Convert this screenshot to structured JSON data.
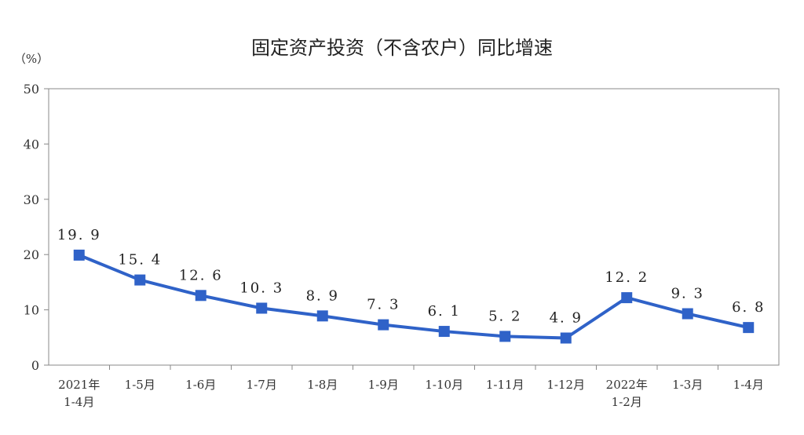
{
  "chart_data": {
    "type": "line",
    "title": "固定资产投资（不含农户）同比增速",
    "unit_label": "（%）",
    "xlabel": "",
    "ylabel": "",
    "ylim": [
      0,
      50
    ],
    "yticks": [
      0,
      10,
      20,
      30,
      40,
      50
    ],
    "grid": false,
    "categories": [
      [
        "2021年",
        "1-4月"
      ],
      [
        "1-5月"
      ],
      [
        "1-6月"
      ],
      [
        "1-7月"
      ],
      [
        "1-8月"
      ],
      [
        "1-9月"
      ],
      [
        "1-10月"
      ],
      [
        "1-11月"
      ],
      [
        "1-12月"
      ],
      [
        "2022年",
        "1-2月"
      ],
      [
        "1-3月"
      ],
      [
        "1-4月"
      ]
    ],
    "series": [
      {
        "values": [
          19.9,
          15.4,
          12.6,
          10.3,
          8.9,
          7.3,
          6.1,
          5.2,
          4.9,
          12.2,
          9.3,
          6.8
        ],
        "labels": [
          "19. 9",
          "15. 4",
          "12. 6",
          "10. 3",
          "8. 9",
          "7. 3",
          "6. 1",
          "5. 2",
          "4. 9",
          "12. 2",
          "9. 3",
          "6. 8"
        ],
        "color": "#2f62c8"
      }
    ],
    "axis_color": "#888888"
  }
}
